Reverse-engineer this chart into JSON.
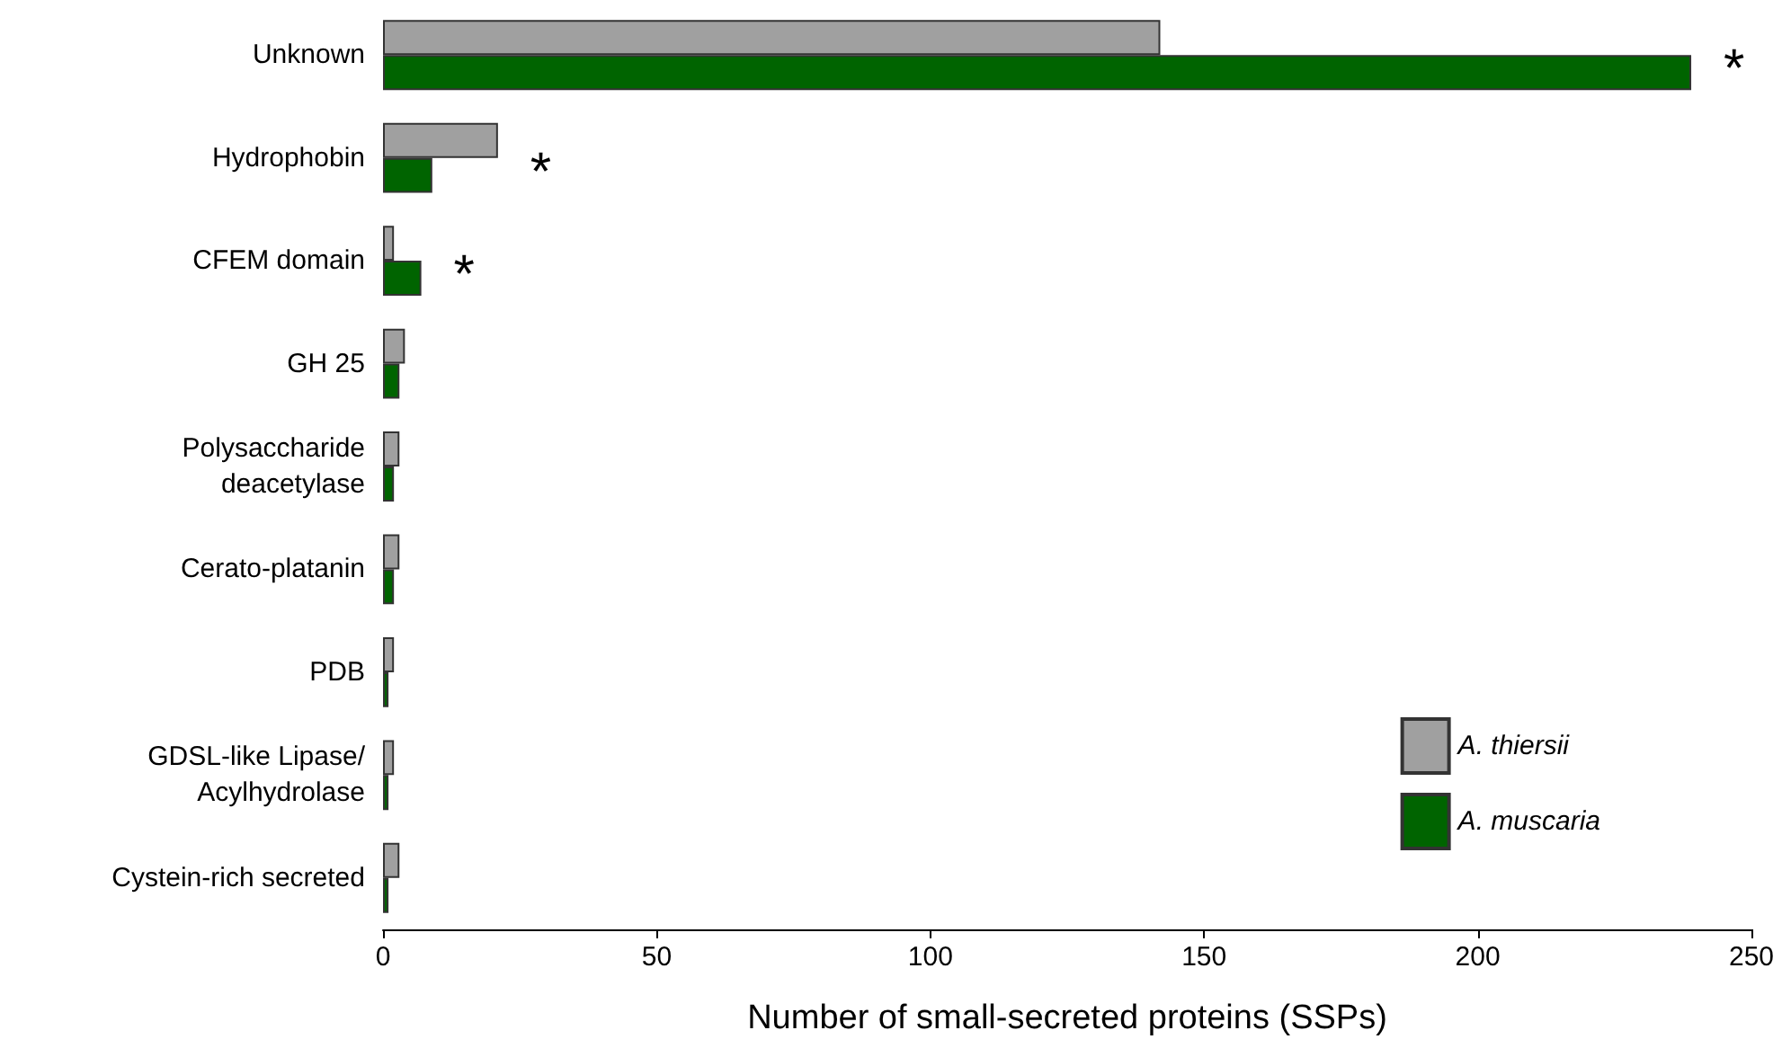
{
  "chart_data": {
    "type": "bar",
    "orientation": "horizontal",
    "xlabel": "Number of small-secreted proteins (SSPs)",
    "categories": [
      "Unknown",
      "Hydrophobin",
      "CFEM domain",
      "GH 25",
      "Polysaccharide\ndeacetylase",
      "Cerato-platanin",
      "PDB",
      "GDSL-like Lipase/\nAcylhydrolase",
      "Cystein-rich secreted"
    ],
    "series": [
      {
        "name": "A. thiersii",
        "color": "#a0a0a0",
        "values": [
          142,
          21,
          2,
          4,
          3,
          3,
          2,
          2,
          3
        ]
      },
      {
        "name": "A. muscaria",
        "color": "#006400",
        "values": [
          239,
          9,
          7,
          3,
          2,
          2,
          1,
          1,
          1
        ]
      }
    ],
    "xlim": [
      0,
      250
    ],
    "xticks": [
      0,
      50,
      100,
      150,
      200,
      250
    ],
    "grid": false,
    "legend": "bottom right",
    "annotations": [
      "*",
      "*",
      "*"
    ]
  }
}
